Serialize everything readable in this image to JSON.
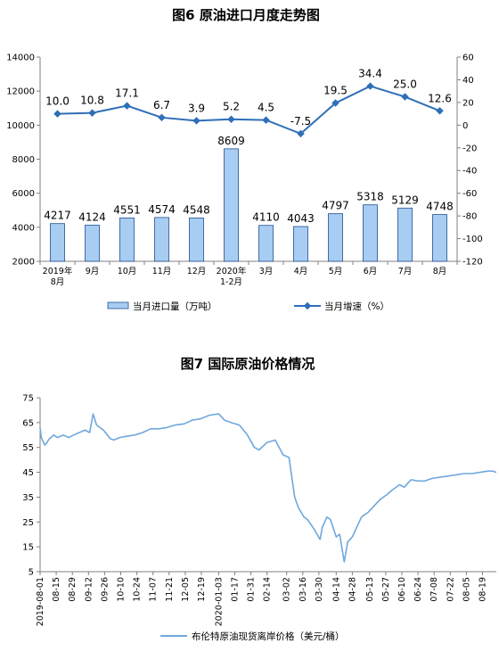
{
  "chart_data": [
    {
      "type": "bar",
      "title": "图6  原油进口月度走势图",
      "categories": [
        "2019年\n8月",
        "9月",
        "10月",
        "11月",
        "12月",
        "2020年\n1-2月",
        "3月",
        "4月",
        "5月",
        "6月",
        "7月",
        "8月"
      ],
      "ylim": [
        2000,
        14000
      ],
      "y_ticks": [
        2000,
        4000,
        6000,
        8000,
        10000,
        12000,
        14000
      ],
      "y2lim": [
        -120,
        60
      ],
      "y2_ticks": [
        -120,
        -100,
        -80,
        -60,
        -40,
        -20,
        0,
        20,
        40,
        60
      ],
      "legend_position": "bottom",
      "grid": false,
      "series": [
        {
          "name": "当月进口量（万吨）",
          "type": "bar",
          "axis": "left",
          "color": "#a8cdf2",
          "edge_color": "#1f4f8f",
          "values": [
            4217,
            4124,
            4551,
            4574,
            4548,
            8609,
            4110,
            4043,
            4797,
            5318,
            5129,
            4748
          ],
          "labels": [
            "4217",
            "4124",
            "4551",
            "4574",
            "4548",
            "8609",
            "4110",
            "4043",
            "4797",
            "5318",
            "5129",
            "4748"
          ]
        },
        {
          "name": "当月增速（%）",
          "type": "line",
          "axis": "right",
          "color": "#2e6fb8",
          "values": [
            10.0,
            10.8,
            17.1,
            6.7,
            3.9,
            5.2,
            4.5,
            -7.5,
            19.5,
            34.4,
            25.0,
            12.6
          ],
          "labels": [
            "10.0",
            "10.8",
            "17.1",
            "6.7",
            "3.9",
            "5.2",
            "4.5",
            "-7.5",
            "19.5",
            "34.4",
            "25.0",
            "12.6"
          ]
        }
      ]
    },
    {
      "type": "line",
      "title": "图7  国际原油价格情况",
      "ylim": [
        5,
        75
      ],
      "y_ticks": [
        5,
        15,
        25,
        35,
        45,
        55,
        65,
        75
      ],
      "x_start": "2019-08-01",
      "x_end": "2020-08-31",
      "x_ticks": [
        "2019-08-01",
        "08-15",
        "08-29",
        "09-12",
        "09-26",
        "10-10",
        "10-24",
        "11-07",
        "11-21",
        "12-05",
        "12-19",
        "2020-01-03",
        "01-17",
        "01-31",
        "02-14",
        "03-02",
        "03-16",
        "03-30",
        "04-14",
        "04-28",
        "05-13",
        "05-27",
        "06-10",
        "06-24",
        "07-08",
        "07-22",
        "08-05",
        "08-19"
      ],
      "legend_position": "bottom",
      "grid": false,
      "series": [
        {
          "name": "布伦特原油现货离岸价格（美元/桶）",
          "color": "#6fa8dc",
          "x": [
            "2019-08-01",
            "2019-08-02",
            "2019-08-05",
            "2019-08-07",
            "2019-08-09",
            "2019-08-13",
            "2019-08-16",
            "2019-08-21",
            "2019-08-26",
            "2019-08-30",
            "2019-09-04",
            "2019-09-09",
            "2019-09-13",
            "2019-09-16",
            "2019-09-19",
            "2019-09-25",
            "2019-10-01",
            "2019-10-04",
            "2019-10-09",
            "2019-10-15",
            "2019-10-22",
            "2019-10-29",
            "2019-11-05",
            "2019-11-12",
            "2019-11-19",
            "2019-11-26",
            "2019-12-04",
            "2019-12-11",
            "2019-12-18",
            "2019-12-26",
            "2020-01-03",
            "2020-01-08",
            "2020-01-14",
            "2020-01-21",
            "2020-01-28",
            "2020-02-03",
            "2020-02-07",
            "2020-02-14",
            "2020-02-21",
            "2020-02-28",
            "2020-03-04",
            "2020-03-09",
            "2020-03-12",
            "2020-03-17",
            "2020-03-20",
            "2020-03-26",
            "2020-03-31",
            "2020-04-02",
            "2020-04-06",
            "2020-04-09",
            "2020-04-14",
            "2020-04-17",
            "2020-04-21",
            "2020-04-24",
            "2020-04-28",
            "2020-05-01",
            "2020-05-06",
            "2020-05-12",
            "2020-05-18",
            "2020-05-22",
            "2020-05-28",
            "2020-06-02",
            "2020-06-08",
            "2020-06-12",
            "2020-06-18",
            "2020-06-24",
            "2020-06-30",
            "2020-07-06",
            "2020-07-13",
            "2020-07-20",
            "2020-07-27",
            "2020-08-03",
            "2020-08-10",
            "2020-08-17",
            "2020-08-24",
            "2020-08-28",
            "2020-08-31"
          ],
          "y": [
            63,
            59,
            56,
            57,
            58.5,
            60,
            59,
            60,
            59,
            60,
            61,
            62,
            61,
            68.5,
            64,
            62,
            58.5,
            58,
            59,
            59.5,
            60,
            61,
            62.5,
            62.5,
            63,
            64,
            64.5,
            66,
            66.5,
            68,
            68.5,
            66,
            65,
            64,
            60,
            55,
            54,
            57,
            58,
            52,
            51,
            35,
            31,
            27,
            26,
            22,
            18,
            23,
            27,
            26,
            19,
            20,
            9,
            17,
            19,
            22,
            27,
            29,
            32,
            34,
            36,
            38,
            40,
            39,
            42,
            41.5,
            41.5,
            42.5,
            43,
            43.5,
            44,
            44.5,
            44.5,
            45,
            45.5,
            45.5,
            45
          ]
        }
      ]
    }
  ]
}
